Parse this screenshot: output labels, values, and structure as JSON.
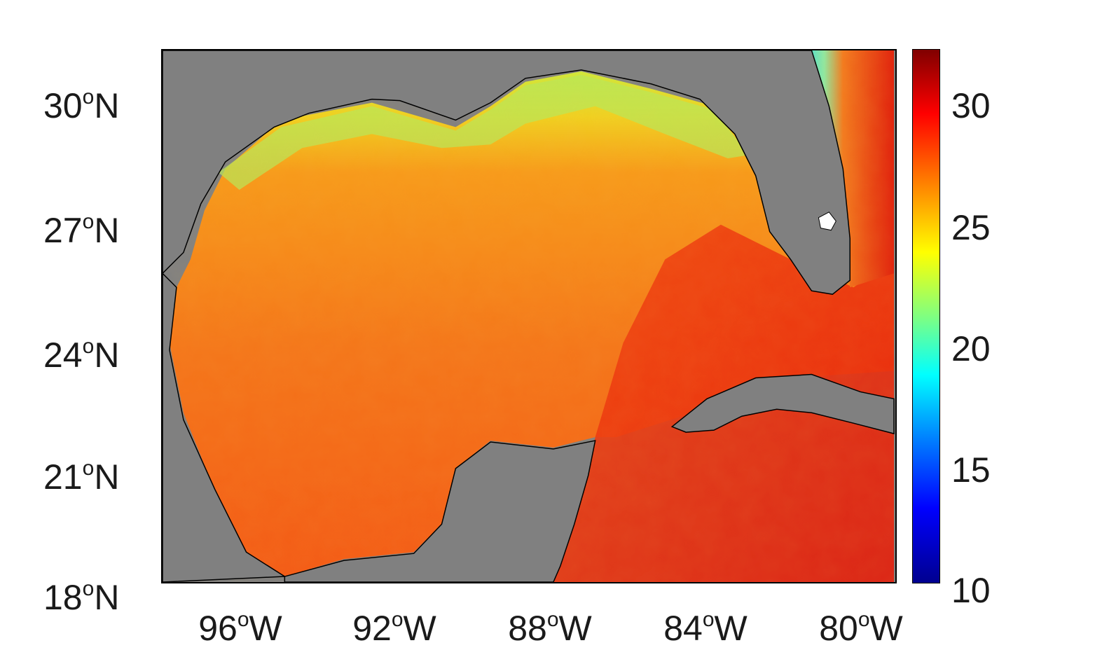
{
  "map": {
    "y_axis_ticks": [
      {
        "deg": "30",
        "hemi": "N"
      },
      {
        "deg": "27",
        "hemi": "N"
      },
      {
        "deg": "24",
        "hemi": "N"
      },
      {
        "deg": "21",
        "hemi": "N"
      },
      {
        "deg": "18",
        "hemi": "N"
      }
    ],
    "x_axis_ticks": [
      {
        "deg": "96",
        "hemi": "W"
      },
      {
        "deg": "92",
        "hemi": "W"
      },
      {
        "deg": "88",
        "hemi": "W"
      },
      {
        "deg": "84",
        "hemi": "W"
      },
      {
        "deg": "80",
        "hemi": "W"
      }
    ],
    "degree_symbol": "o",
    "land_color": "#808080",
    "colormap": "jet"
  },
  "colorbar": {
    "ticks": [
      "30",
      "25",
      "20",
      "15",
      "10"
    ],
    "range": [
      10,
      32
    ]
  }
}
